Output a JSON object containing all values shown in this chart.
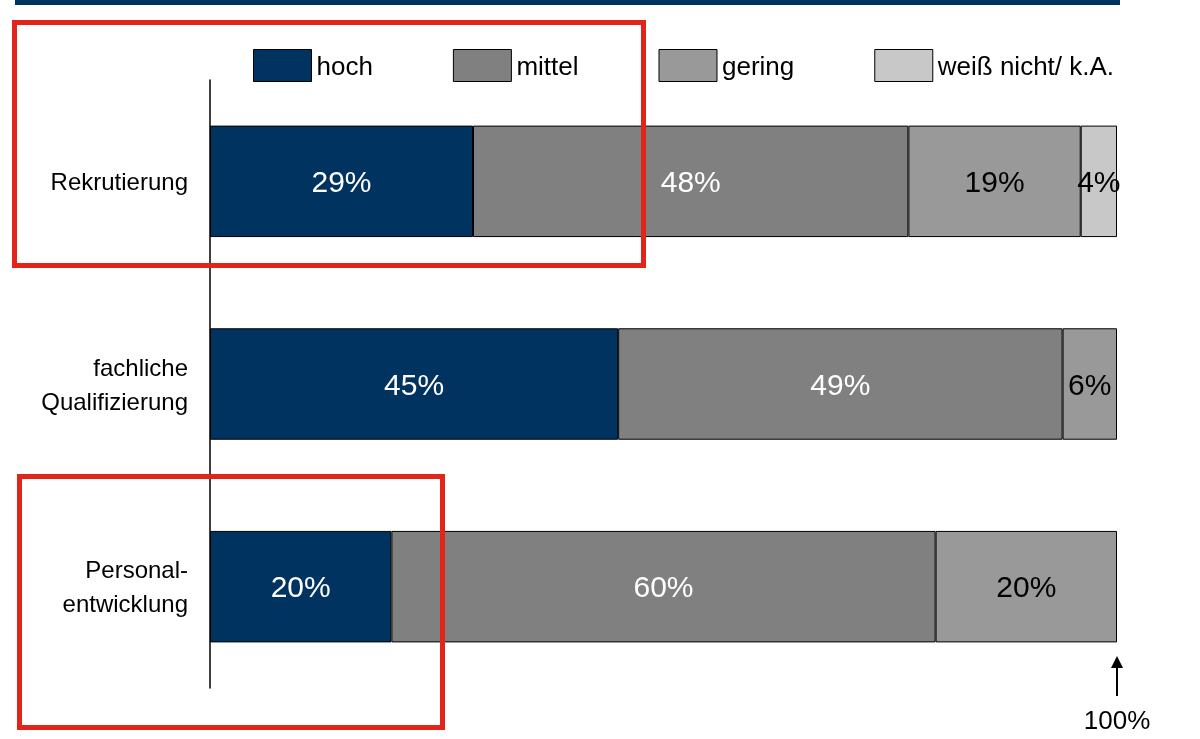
{
  "chart_data": {
    "type": "bar",
    "orientation": "horizontal",
    "stacked": true,
    "categories": [
      "Rekrutierung",
      "fachliche\nQualifizierung",
      "Personal-\nentwicklung"
    ],
    "series": [
      {
        "name": "hoch",
        "color": "#003360",
        "values": [
          29,
          45,
          20
        ],
        "value_labels": [
          "29%",
          "45%",
          "20%"
        ]
      },
      {
        "name": "mittel",
        "color": "#808080",
        "values": [
          48,
          49,
          60
        ],
        "value_labels": [
          "48%",
          "49%",
          "60%"
        ]
      },
      {
        "name": "gering",
        "color": "#999999",
        "values": [
          19,
          6,
          20
        ],
        "value_labels": [
          "19%",
          "6%",
          "20%"
        ]
      },
      {
        "name": "weiß nicht/ k.A.",
        "color": "#c8c8c8",
        "values": [
          4,
          null,
          null
        ],
        "value_labels": [
          "4%",
          null,
          null
        ]
      }
    ],
    "xlim": [
      0,
      100
    ],
    "tick_labels": "y",
    "grid": false,
    "legend": "top",
    "annotations": [
      {
        "text": "100%",
        "x": 100
      }
    ]
  }
}
